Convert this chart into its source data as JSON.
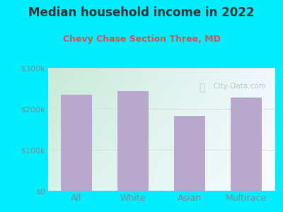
{
  "title": "Median household income in 2022",
  "subtitle": "Chevy Chase Section Three, MD",
  "categories": [
    "All",
    "White",
    "Asian",
    "Multirace"
  ],
  "values": [
    235000,
    243000,
    183000,
    228000
  ],
  "bar_color": "#b8a8cc",
  "background_outer": "#00eeff",
  "background_inner_top_left": "#c8ead8",
  "background_inner_bottom_right": "#f0f4fa",
  "title_color": "#333333",
  "subtitle_color": "#cc5555",
  "tick_color": "#888888",
  "ytick_labels": [
    "$0",
    "$100k",
    "$200k",
    "$300k"
  ],
  "ytick_values": [
    0,
    100000,
    200000,
    300000
  ],
  "ylim": [
    0,
    300000
  ],
  "watermark": "City-Data.com",
  "title_fontsize": 12,
  "subtitle_fontsize": 9,
  "tick_fontsize": 8,
  "grid_color": "#dddddd"
}
